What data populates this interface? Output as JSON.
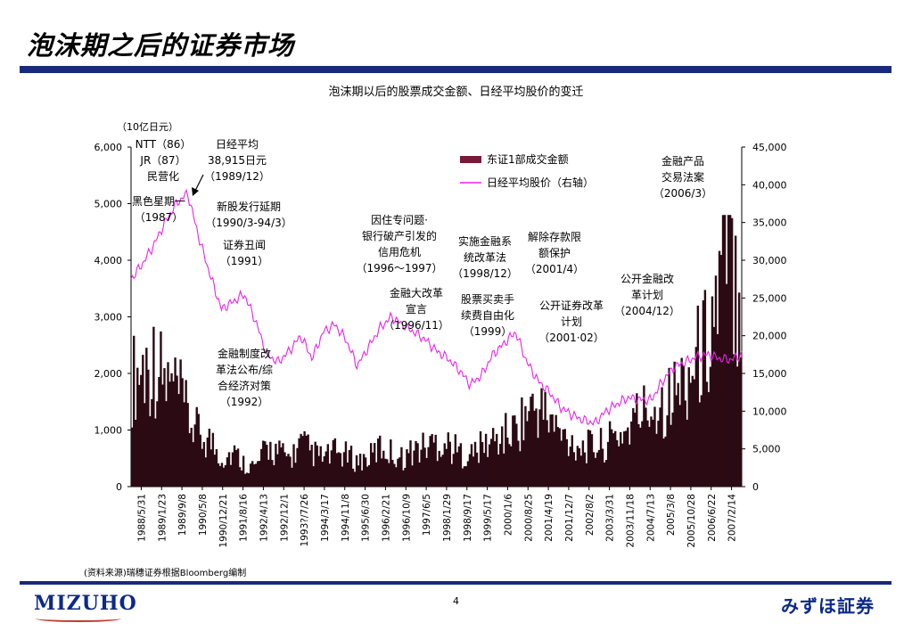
{
  "header": {
    "title": "泡沫期之后的证券市场"
  },
  "footer": {
    "source": "(资料来源)瑞穗证券根据Bloomberg编制",
    "page": "4",
    "logo": "MIZUHO",
    "brand": "みずほ証券"
  },
  "colors": {
    "bar": "#2b0a14",
    "line": "#ee22ee",
    "rule": "#1a2a7a",
    "legend_bar": "#7a1a3a"
  },
  "chart_data": {
    "type": "bar+line",
    "title": "泡沫期以后的股票成交金额、日经平均股价的变迁",
    "left_axis": {
      "unit": "（10亿日元）",
      "min": 0,
      "max": 6000,
      "ticks": [
        "0",
        "1,000",
        "2,000",
        "3,000",
        "4,000",
        "5,000",
        "6,000"
      ]
    },
    "right_axis": {
      "min": 0,
      "max": 45000,
      "ticks": [
        "0",
        "5,000",
        "10,000",
        "15,000",
        "20,000",
        "25,000",
        "30,000",
        "35,000",
        "40,000",
        "45,000"
      ]
    },
    "x_ticks": [
      "1988/5/31",
      "1989/1/23",
      "1989/9/8",
      "1990/5/8",
      "1990/12/21",
      "1991/8/16",
      "1992/4/13",
      "1992/12/1",
      "1993?/7/26",
      "1994/3/17",
      "1994/11/8",
      "1995/6/30",
      "1996/2/21",
      "1996/10/9",
      "1997/6/5",
      "1998/1/29",
      "1998/9/17",
      "1999/5/17",
      "2000/1/6",
      "2000/8/25",
      "2001/4/19",
      "2001/12/7",
      "2002/8/2",
      "2003/3/31",
      "2003/11/18",
      "2004/7/13",
      "2005/3/8",
      "2005/10/28",
      "2006/6/22",
      "2007/2/14"
    ],
    "legend": [
      {
        "key": "bar",
        "label": "东证1部成交金额"
      },
      {
        "key": "line",
        "label": "日经平均股价（右轴）"
      }
    ],
    "series": [
      {
        "name": "东证1部成交金额",
        "axis": "left",
        "values": [
          1900,
          2100,
          2200,
          1800,
          1700,
          1200,
          900,
          800,
          500,
          600,
          400,
          350,
          700,
          600,
          500,
          750,
          600,
          500,
          600,
          550,
          450,
          500,
          700,
          600,
          500,
          650,
          700,
          800,
          750,
          600,
          550,
          700,
          800,
          900,
          1000,
          1300,
          1400,
          1200,
          900,
          800,
          700,
          700,
          750,
          900,
          1000,
          1300,
          1400,
          1500,
          1600,
          1900,
          2200,
          2600,
          3400,
          4200,
          3500
        ]
      },
      {
        "name": "日经平均股价（右轴）",
        "axis": "right",
        "values": [
          27500,
          29500,
          32000,
          35000,
          37500,
          38900,
          33000,
          28000,
          23500,
          24500,
          25500,
          22000,
          17500,
          16500,
          18000,
          20000,
          17000,
          20500,
          21500,
          19500,
          16000,
          18500,
          21000,
          22500,
          21500,
          20500,
          19500,
          18000,
          17000,
          15500,
          13500,
          14800,
          17500,
          19000,
          20500,
          16500,
          14000,
          12500,
          10500,
          9500,
          8800,
          8400,
          10000,
          11000,
          11800,
          11500,
          11500,
          14000,
          15800,
          16500,
          17200,
          17500,
          17000,
          16800,
          17500
        ]
      }
    ],
    "annotations": [
      [
        "NTT（86）",
        "JR（87）",
        "民营化"
      ],
      [
        "日经平均",
        "38,915日元",
        "（1989/12）"
      ],
      [
        "黑色星期一",
        "（1987）"
      ],
      [
        "新股发行延期",
        "（1990/3-94/3）"
      ],
      [
        "证券丑闻",
        "（1991）"
      ],
      [
        "因住专问题·",
        "银行破产引发的",
        "信用危机",
        "（1996～1997）"
      ],
      [
        "金融大改革",
        "宣言",
        "（1996/11）"
      ],
      [
        "实施金融系",
        "统改革法",
        "（1998/12）"
      ],
      [
        "股票买卖手",
        "续费自由化",
        "（1999）"
      ],
      [
        "解除存款限",
        "额保护",
        "（2001/4）"
      ],
      [
        "公开证券改革",
        "计划",
        "（2001·02）"
      ],
      [
        "公开金融改",
        "革计划",
        "（2004/12）"
      ],
      [
        "金融产品",
        "交易法案",
        "（2006/3）"
      ],
      [
        "金融制度改",
        "革法公布/综",
        "合经济对策",
        "（1992）"
      ]
    ]
  }
}
